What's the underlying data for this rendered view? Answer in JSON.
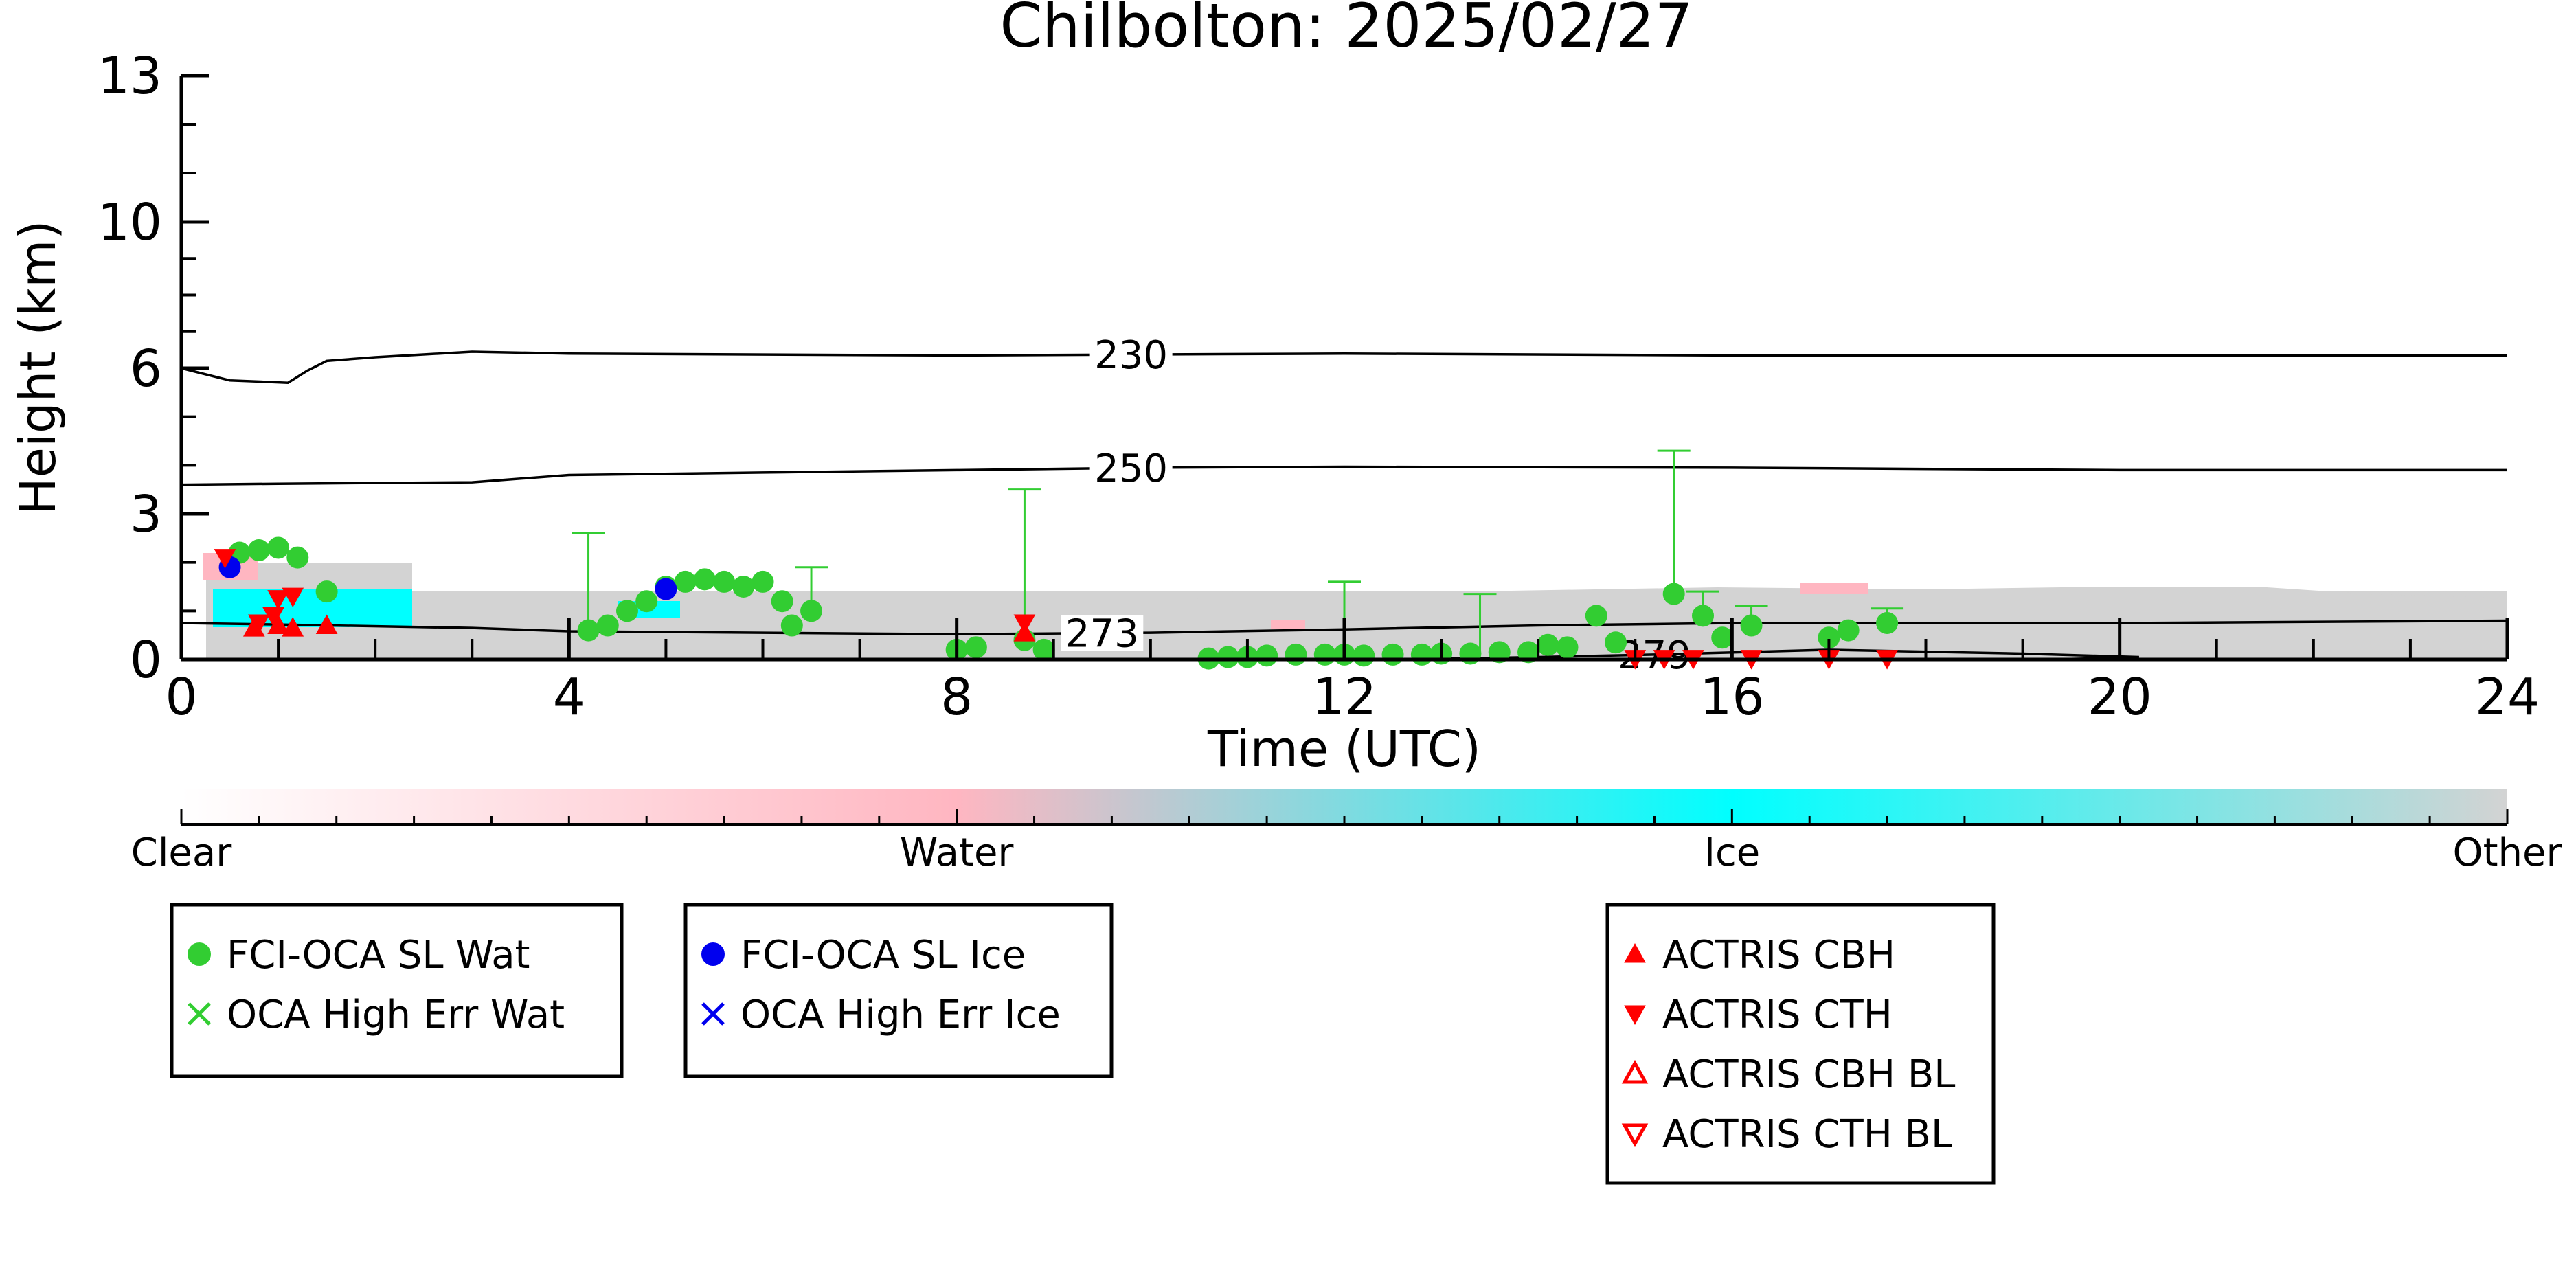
{
  "chart_data": {
    "type": "scatter",
    "title": "Chilbolton: 2025/02/27",
    "xlabel": "Time (UTC)",
    "ylabel": "Height (km)",
    "xlim": [
      0,
      24
    ],
    "ylim": [
      0,
      13
    ],
    "x_ticks": [
      0,
      4,
      8,
      12,
      16,
      20,
      24
    ],
    "x_tick_labels": [
      "0",
      "4",
      "8",
      "12",
      "16",
      "20",
      "24"
    ],
    "y_ticks": [
      0,
      3,
      6,
      10,
      13
    ],
    "y_tick_labels": [
      "0",
      "3",
      "6",
      "10",
      "13"
    ],
    "y_axis_kind": "nonlinear",
    "colorbar": {
      "labels": [
        "Clear",
        "Water",
        "Ice",
        "Other"
      ],
      "colors": [
        "#ffffff",
        "#ffb6c1",
        "#00ffff",
        "#d3d3d3"
      ]
    },
    "contours": [
      {
        "label": "230",
        "label_x": 9.8,
        "points": [
          [
            0,
            6.0
          ],
          [
            0.5,
            5.75
          ],
          [
            1.1,
            5.7
          ],
          [
            1.3,
            5.95
          ],
          [
            1.5,
            6.2
          ],
          [
            2.0,
            6.3
          ],
          [
            3.0,
            6.45
          ],
          [
            4.0,
            6.4
          ],
          [
            8.0,
            6.35
          ],
          [
            12.0,
            6.4
          ],
          [
            16.0,
            6.35
          ],
          [
            20.0,
            6.35
          ],
          [
            24.0,
            6.35
          ]
        ]
      },
      {
        "label": "250",
        "label_x": 9.8,
        "points": [
          [
            0,
            3.6
          ],
          [
            1.0,
            3.62
          ],
          [
            3.0,
            3.65
          ],
          [
            4.0,
            3.8
          ],
          [
            6.0,
            3.85
          ],
          [
            8.0,
            3.9
          ],
          [
            10.0,
            3.95
          ],
          [
            12.0,
            3.97
          ],
          [
            16.0,
            3.95
          ],
          [
            20.0,
            3.9
          ],
          [
            24.0,
            3.9
          ]
        ]
      },
      {
        "label": "273",
        "label_x": 9.5,
        "points": [
          [
            0,
            0.75
          ],
          [
            1.0,
            0.72
          ],
          [
            3.0,
            0.65
          ],
          [
            4.0,
            0.58
          ],
          [
            6.0,
            0.55
          ],
          [
            8.0,
            0.52
          ],
          [
            10.0,
            0.55
          ],
          [
            12.0,
            0.62
          ],
          [
            14.0,
            0.7
          ],
          [
            16.0,
            0.75
          ],
          [
            20.0,
            0.75
          ],
          [
            24.0,
            0.8
          ]
        ]
      },
      {
        "label": "279",
        "label_x": 15.2,
        "points": [
          [
            12.8,
            0.01
          ],
          [
            14.0,
            0.05
          ],
          [
            15.2,
            0.1
          ],
          [
            17.0,
            0.2
          ],
          [
            19.0,
            0.12
          ],
          [
            20.2,
            0.05
          ],
          [
            19.5,
            0.01
          ]
        ]
      }
    ],
    "series": [
      {
        "name": "FCI-OCA SL Wat",
        "color": "#32cd32",
        "marker": "circle",
        "points": [
          [
            0.6,
            2.2
          ],
          [
            0.8,
            2.25
          ],
          [
            1.0,
            2.3
          ],
          [
            1.2,
            2.1
          ],
          [
            1.5,
            1.4
          ],
          [
            4.2,
            0.6
          ],
          [
            4.4,
            0.7
          ],
          [
            4.6,
            1.0
          ],
          [
            4.8,
            1.2
          ],
          [
            5.0,
            1.5
          ],
          [
            5.2,
            1.6
          ],
          [
            5.4,
            1.65
          ],
          [
            5.6,
            1.6
          ],
          [
            5.8,
            1.5
          ],
          [
            6.0,
            1.6
          ],
          [
            6.2,
            1.2
          ],
          [
            6.3,
            0.7
          ],
          [
            6.5,
            1.0
          ],
          [
            8.0,
            0.2
          ],
          [
            8.2,
            0.25
          ],
          [
            8.7,
            0.4
          ],
          [
            8.9,
            0.2
          ],
          [
            10.6,
            0.02
          ],
          [
            10.8,
            0.05
          ],
          [
            11.0,
            0.05
          ],
          [
            11.2,
            0.08
          ],
          [
            11.5,
            0.1
          ],
          [
            11.8,
            0.1
          ],
          [
            12.0,
            0.1
          ],
          [
            12.2,
            0.08
          ],
          [
            12.5,
            0.1
          ],
          [
            12.8,
            0.1
          ],
          [
            13.0,
            0.12
          ],
          [
            13.3,
            0.12
          ],
          [
            13.6,
            0.15
          ],
          [
            13.9,
            0.15
          ],
          [
            14.1,
            0.3
          ],
          [
            14.3,
            0.25
          ],
          [
            14.6,
            0.9
          ],
          [
            14.8,
            0.35
          ],
          [
            15.4,
            1.35
          ],
          [
            15.7,
            0.9
          ],
          [
            15.9,
            0.45
          ],
          [
            16.2,
            0.7
          ],
          [
            17.0,
            0.45
          ],
          [
            17.2,
            0.6
          ],
          [
            17.6,
            0.75
          ]
        ],
        "error_bars": [
          [
            4.2,
            0.6,
            2.6
          ],
          [
            6.5,
            1.0,
            1.9
          ],
          [
            8.7,
            0.4,
            3.5
          ],
          [
            12.0,
            0.1,
            1.6
          ],
          [
            13.4,
            0.12,
            1.35
          ],
          [
            15.4,
            1.35,
            4.3
          ],
          [
            15.7,
            0.9,
            1.4
          ],
          [
            16.2,
            0.7,
            1.1
          ],
          [
            17.6,
            0.75,
            1.05
          ]
        ]
      },
      {
        "name": "OCA High Err Wat",
        "color": "#32cd32",
        "marker": "x",
        "points": []
      },
      {
        "name": "FCI-OCA SL Ice",
        "color": "#0000ee",
        "marker": "circle",
        "points": [
          [
            0.5,
            1.9
          ],
          [
            5.0,
            1.45
          ]
        ]
      },
      {
        "name": "OCA High Err Ice",
        "color": "#0000ee",
        "marker": "x",
        "points": []
      },
      {
        "name": "ACTRIS CBH",
        "color": "#ff0000",
        "marker": "triangle-up",
        "points": [
          [
            0.75,
            0.65
          ],
          [
            1.0,
            0.7
          ],
          [
            1.15,
            0.65
          ],
          [
            1.5,
            0.7
          ],
          [
            8.7,
            0.55
          ]
        ]
      },
      {
        "name": "ACTRIS CTH",
        "color": "#ff0000",
        "marker": "triangle-down",
        "points": [
          [
            0.45,
            2.1
          ],
          [
            0.8,
            0.75
          ],
          [
            1.0,
            1.25
          ],
          [
            1.15,
            1.3
          ],
          [
            0.95,
            0.9
          ],
          [
            8.7,
            0.75
          ],
          [
            15.0,
            0.02
          ],
          [
            15.3,
            0.02
          ],
          [
            15.6,
            0.02
          ],
          [
            16.2,
            0.02
          ],
          [
            17.0,
            0.02
          ],
          [
            17.6,
            0.02
          ]
        ]
      },
      {
        "name": "ACTRIS CBH BL",
        "color": "#ff0000",
        "marker": "triangle-up-open",
        "points": []
      },
      {
        "name": "ACTRIS CTH BL",
        "color": "#ff0000",
        "marker": "triangle-down-open",
        "points": []
      }
    ],
    "legends": [
      [
        "FCI-OCA SL Wat",
        "OCA High Err Wat"
      ],
      [
        "FCI-OCA SL Ice",
        "OCA High Err Ice"
      ],
      [
        "ACTRIS CBH",
        "ACTRIS CTH",
        "ACTRIS CBH BL",
        "ACTRIS CTH BL"
      ]
    ]
  }
}
